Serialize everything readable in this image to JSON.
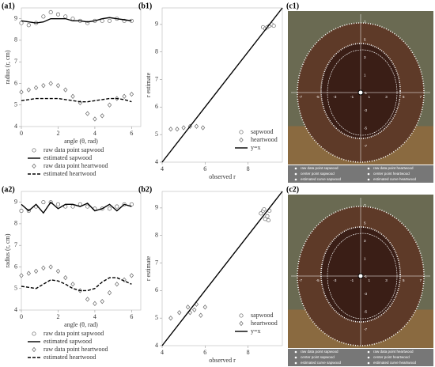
{
  "chart_data": [
    {
      "type": "line",
      "panel": "(a1)",
      "xlabel": "angle (θ, rad)",
      "ylabel": "radius (r, cm)",
      "x": [
        0,
        0.4,
        0.8,
        1.2,
        1.6,
        2.0,
        2.4,
        2.8,
        3.2,
        3.6,
        4.0,
        4.4,
        4.8,
        5.2,
        5.6,
        6.0
      ],
      "xlim": [
        0,
        6.5
      ],
      "xticks": [
        0,
        2,
        4,
        6
      ],
      "ylim": [
        4,
        9.5
      ],
      "yticks": [
        4,
        5,
        6,
        7,
        8,
        9
      ],
      "legend": "below",
      "series": [
        {
          "name": "raw data point sapwood",
          "color": "#666666",
          "style": "markers",
          "marker": "circle",
          "values": [
            8.8,
            8.7,
            8.8,
            9.1,
            9.3,
            9.2,
            9.1,
            9.0,
            8.9,
            8.8,
            8.9,
            8.9,
            8.9,
            9.0,
            8.9,
            8.9
          ]
        },
        {
          "name": "estimated sapwood",
          "color": "#000000",
          "style": "solid",
          "values": [
            8.9,
            8.85,
            8.8,
            8.85,
            9.0,
            9.0,
            9.0,
            8.9,
            8.9,
            8.85,
            8.9,
            9.0,
            9.05,
            9.0,
            8.95,
            8.9
          ]
        },
        {
          "name": "raw data point heartwood",
          "color": "#666666",
          "style": "markers",
          "marker": "diamond",
          "values": [
            5.6,
            5.7,
            5.8,
            5.9,
            6.0,
            5.9,
            5.7,
            5.4,
            5.1,
            4.6,
            4.35,
            4.5,
            5.0,
            5.3,
            5.4,
            5.5
          ]
        },
        {
          "name": "estimated heartwood",
          "color": "#000000",
          "style": "dashed",
          "values": [
            5.2,
            5.25,
            5.3,
            5.3,
            5.3,
            5.3,
            5.25,
            5.2,
            5.15,
            5.15,
            5.2,
            5.25,
            5.3,
            5.3,
            5.25,
            5.15
          ]
        }
      ]
    },
    {
      "type": "scatter",
      "panel": "(b1)",
      "xlabel": "observed r",
      "ylabel": "r estimate",
      "xlim": [
        4,
        9.6
      ],
      "xticks": [
        4,
        6,
        8
      ],
      "ylim": [
        4,
        9.6
      ],
      "yticks": [
        4,
        5,
        6,
        7,
        8,
        9
      ],
      "legend": "lower right",
      "series": [
        {
          "name": "sapwood",
          "color": "#666666",
          "style": "markers",
          "marker": "circle",
          "x": [
            8.7,
            8.8,
            8.9,
            9.0,
            9.1,
            9.2
          ],
          "values": [
            8.9,
            8.85,
            8.9,
            8.95,
            9.0,
            8.95
          ]
        },
        {
          "name": "heartwood",
          "color": "#666666",
          "style": "markers",
          "marker": "diamond",
          "x": [
            4.4,
            4.7,
            5.0,
            5.3,
            5.6,
            5.9
          ],
          "values": [
            5.2,
            5.2,
            5.25,
            5.3,
            5.3,
            5.25
          ]
        },
        {
          "name": "y=x",
          "color": "#000000",
          "style": "solid",
          "x": [
            4,
            9.6
          ],
          "values": [
            4,
            9.6
          ]
        }
      ]
    },
    {
      "type": "line",
      "panel": "(a2)",
      "xlabel": "angle (θ, rad)",
      "ylabel": "radius (r, cm)",
      "x": [
        0,
        0.4,
        0.8,
        1.2,
        1.6,
        2.0,
        2.4,
        2.8,
        3.2,
        3.6,
        4.0,
        4.4,
        4.8,
        5.2,
        5.6,
        6.0
      ],
      "xlim": [
        0,
        6.5
      ],
      "xticks": [
        0,
        2,
        4,
        6
      ],
      "ylim": [
        4,
        9.5
      ],
      "yticks": [
        4,
        5,
        6,
        7,
        8,
        9
      ],
      "legend": "below",
      "series": [
        {
          "name": "raw data point sapwood",
          "color": "#666666",
          "style": "markers",
          "marker": "circle",
          "values": [
            8.6,
            8.6,
            8.8,
            9.0,
            9.0,
            8.9,
            8.8,
            8.8,
            8.9,
            8.8,
            8.7,
            8.7,
            8.7,
            8.8,
            8.9,
            8.9
          ]
        },
        {
          "name": "estimated sapwood",
          "color": "#000000",
          "style": "solid",
          "values": [
            8.9,
            8.6,
            8.9,
            8.5,
            9.0,
            8.7,
            8.9,
            8.9,
            8.8,
            8.95,
            8.6,
            8.7,
            8.9,
            8.6,
            8.9,
            8.8
          ]
        },
        {
          "name": "raw data point heartwood",
          "color": "#666666",
          "style": "markers",
          "marker": "diamond",
          "values": [
            5.6,
            5.7,
            5.8,
            5.95,
            6.0,
            5.8,
            5.5,
            5.2,
            4.9,
            4.5,
            4.3,
            4.4,
            4.8,
            5.2,
            5.4,
            5.6
          ]
        },
        {
          "name": "estimated heartwood",
          "color": "#000000",
          "style": "dashed",
          "values": [
            5.1,
            5.05,
            5.0,
            5.2,
            5.4,
            5.35,
            5.2,
            5.0,
            4.9,
            4.9,
            5.0,
            5.3,
            5.5,
            5.5,
            5.35,
            5.2
          ]
        }
      ]
    },
    {
      "type": "scatter",
      "panel": "(b2)",
      "xlabel": "observed r",
      "ylabel": "r estimate",
      "xlim": [
        4,
        9.6
      ],
      "xticks": [
        4,
        6,
        8
      ],
      "ylim": [
        4,
        9.6
      ],
      "yticks": [
        4,
        5,
        6,
        7,
        8,
        9
      ],
      "legend": "lower right",
      "series": [
        {
          "name": "sapwood",
          "color": "#666666",
          "style": "markers",
          "marker": "circle",
          "x": [
            8.6,
            8.7,
            8.8,
            8.9,
            9.0,
            8.75,
            8.95
          ],
          "values": [
            8.8,
            8.9,
            8.6,
            8.7,
            8.9,
            8.95,
            8.55
          ]
        },
        {
          "name": "heartwood",
          "color": "#666666",
          "style": "markers",
          "marker": "diamond",
          "x": [
            4.4,
            4.8,
            5.2,
            5.5,
            5.8,
            6.0,
            5.6,
            5.3
          ],
          "values": [
            5.0,
            5.2,
            5.4,
            5.3,
            5.1,
            5.4,
            5.5,
            5.2
          ]
        },
        {
          "name": "y=x",
          "color": "#000000",
          "style": "solid",
          "x": [
            4,
            9.6
          ],
          "values": [
            4,
            9.6
          ]
        }
      ]
    }
  ],
  "photos": [
    {
      "panel": "(c1)",
      "xticks": [
        "-7",
        "-5",
        "-3",
        "-1",
        "1",
        "3",
        "5",
        "7"
      ],
      "yticks": [
        "7",
        "5",
        "3",
        "1",
        "-1",
        "-3",
        "-5",
        "-7"
      ],
      "legend": [
        "raw data point sapwood",
        "raw data point heartwood",
        "center point sapwood",
        "center point heartwood",
        "estimated curve sapwood",
        "estimated curve heartwood"
      ]
    },
    {
      "panel": "(c2)",
      "xticks": [
        "-7",
        "-5",
        "-3",
        "-1",
        "1",
        "3",
        "5",
        "7"
      ],
      "yticks": [
        "7",
        "5",
        "3",
        "1",
        "-1",
        "-3",
        "-5",
        "-7"
      ],
      "legend": [
        "raw data point sapwood",
        "raw data point heartwood",
        "center point sapwood",
        "center point heartwood",
        "estimated curve sapwood",
        "estimated curve heartwood"
      ]
    }
  ]
}
